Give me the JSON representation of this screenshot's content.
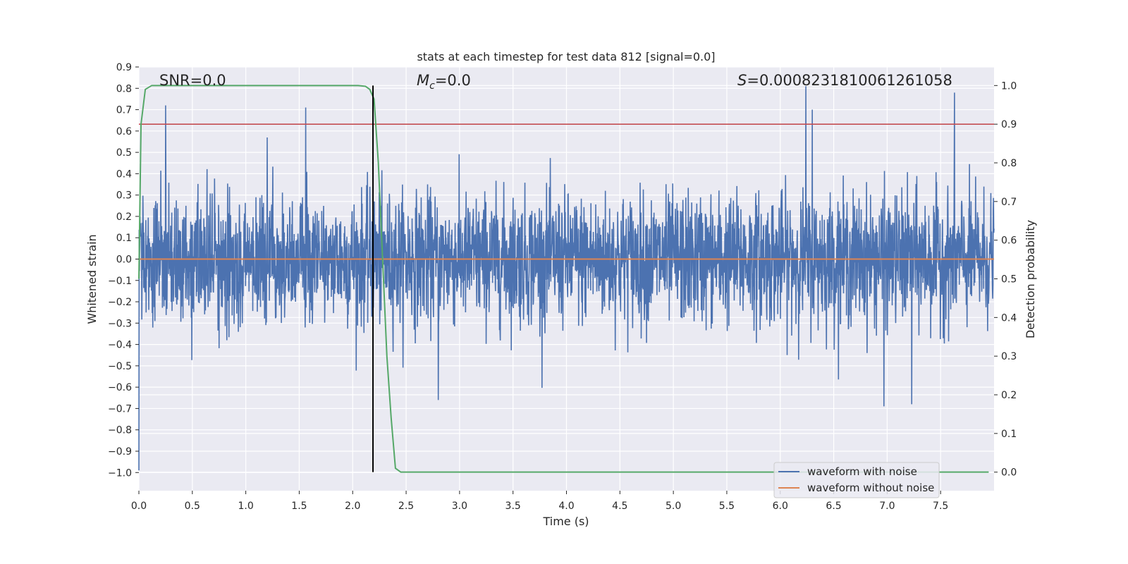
{
  "chart_data": {
    "type": "line",
    "title": "stats at each timestep for test data 812 [signal=0.0]",
    "xlabel": "Time (s)",
    "ylabel_left": "Whitened strain",
    "ylabel_right": "Detection probability",
    "xlim": [
      0.0,
      8.0
    ],
    "ylim_left": [
      -1.085,
      0.9
    ],
    "ylim_right": [
      -0.048,
      1.048
    ],
    "xticks": [
      0.0,
      0.5,
      1.0,
      1.5,
      2.0,
      2.5,
      3.0,
      3.5,
      4.0,
      4.5,
      5.0,
      5.5,
      6.0,
      6.5,
      7.0,
      7.5
    ],
    "xtick_labels": [
      "0.0",
      "0.5",
      "1.0",
      "1.5",
      "2.0",
      "2.5",
      "3.0",
      "3.5",
      "4.0",
      "4.5",
      "5.0",
      "5.5",
      "6.0",
      "6.5",
      "7.0",
      "7.5"
    ],
    "yticks_left": [
      0.9,
      0.8,
      0.7,
      0.6,
      0.5,
      0.4,
      0.3,
      0.2,
      0.1,
      0.0,
      -0.1,
      -0.2,
      -0.3,
      -0.4,
      -0.5,
      -0.6,
      -0.7,
      -0.8,
      -0.9,
      -1.0
    ],
    "ytick_labels_left": [
      "0.9",
      "0.8",
      "0.7",
      "0.6",
      "0.5",
      "0.4",
      "0.3",
      "0.2",
      "0.1",
      "0.0",
      "−0.1",
      "−0.2",
      "−0.3",
      "−0.4",
      "−0.5",
      "−0.6",
      "−0.7",
      "−0.8",
      "−0.9",
      "−1.0"
    ],
    "yticks_right": [
      1.0,
      0.9,
      0.8,
      0.7,
      0.6,
      0.5,
      0.4,
      0.3,
      0.2,
      0.1,
      0.0
    ],
    "ytick_labels_right": [
      "1.0",
      "0.9",
      "0.8",
      "0.7",
      "0.6",
      "0.5",
      "0.4",
      "0.3",
      "0.2",
      "0.1",
      "0.0"
    ],
    "grid": true,
    "annotations": {
      "snr": "SNR=0.0",
      "mc_symbol": "M",
      "mc_sub": "c",
      "mc_value": "=0.0",
      "s_symbol": "S",
      "s_value": "=0.0008231810061261058"
    },
    "series": [
      {
        "name": "waveform with noise",
        "axis": "left",
        "color": "#4c72b0",
        "kind": "noise",
        "amplitude_std": 0.15,
        "notable_peaks": [
          {
            "x": 0.0,
            "y": -0.99
          },
          {
            "x": 0.25,
            "y": 0.72
          },
          {
            "x": 1.56,
            "y": 0.71
          },
          {
            "x": 2.8,
            "y": -0.66
          },
          {
            "x": 6.24,
            "y": 0.81
          },
          {
            "x": 6.3,
            "y": 0.7
          },
          {
            "x": 6.97,
            "y": -0.69
          },
          {
            "x": 7.23,
            "y": -0.68
          },
          {
            "x": 7.63,
            "y": 0.78
          }
        ]
      },
      {
        "name": "waveform without noise",
        "axis": "left",
        "color": "#dd8452",
        "x": [
          0.0,
          8.0
        ],
        "y": [
          0.0,
          0.0
        ]
      },
      {
        "axis": "right",
        "color": "#55a868",
        "x": [
          0.0,
          0.02,
          0.06,
          0.12,
          0.2,
          0.5,
          1.0,
          1.5,
          1.9,
          2.05,
          2.12,
          2.16,
          2.2,
          2.24,
          2.28,
          2.32,
          2.36,
          2.4,
          2.45,
          2.5,
          3.0,
          4.0,
          5.0,
          6.0,
          7.0,
          7.95
        ],
        "y": [
          0.5,
          0.9,
          0.99,
          1.0,
          1.0,
          1.0,
          1.0,
          1.0,
          1.0,
          1.0,
          0.998,
          0.99,
          0.965,
          0.8,
          0.55,
          0.3,
          0.14,
          0.01,
          0.0,
          0.0,
          0.0,
          0.0,
          0.0,
          0.0,
          0.0,
          0.0
        ]
      }
    ],
    "threshold": {
      "axis": "right",
      "y": 0.9,
      "color": "#c44e52"
    },
    "vertical_marker": {
      "x": 2.19,
      "color": "#000000"
    },
    "legend": {
      "placement": "lower-right",
      "entries": [
        {
          "label": "waveform with noise",
          "color": "#4c72b0"
        },
        {
          "label": "waveform without noise",
          "color": "#dd8452"
        }
      ]
    },
    "colors": {
      "plot_background": "#eaeaf2",
      "grid": "#ffffff",
      "text": "#262626"
    }
  }
}
